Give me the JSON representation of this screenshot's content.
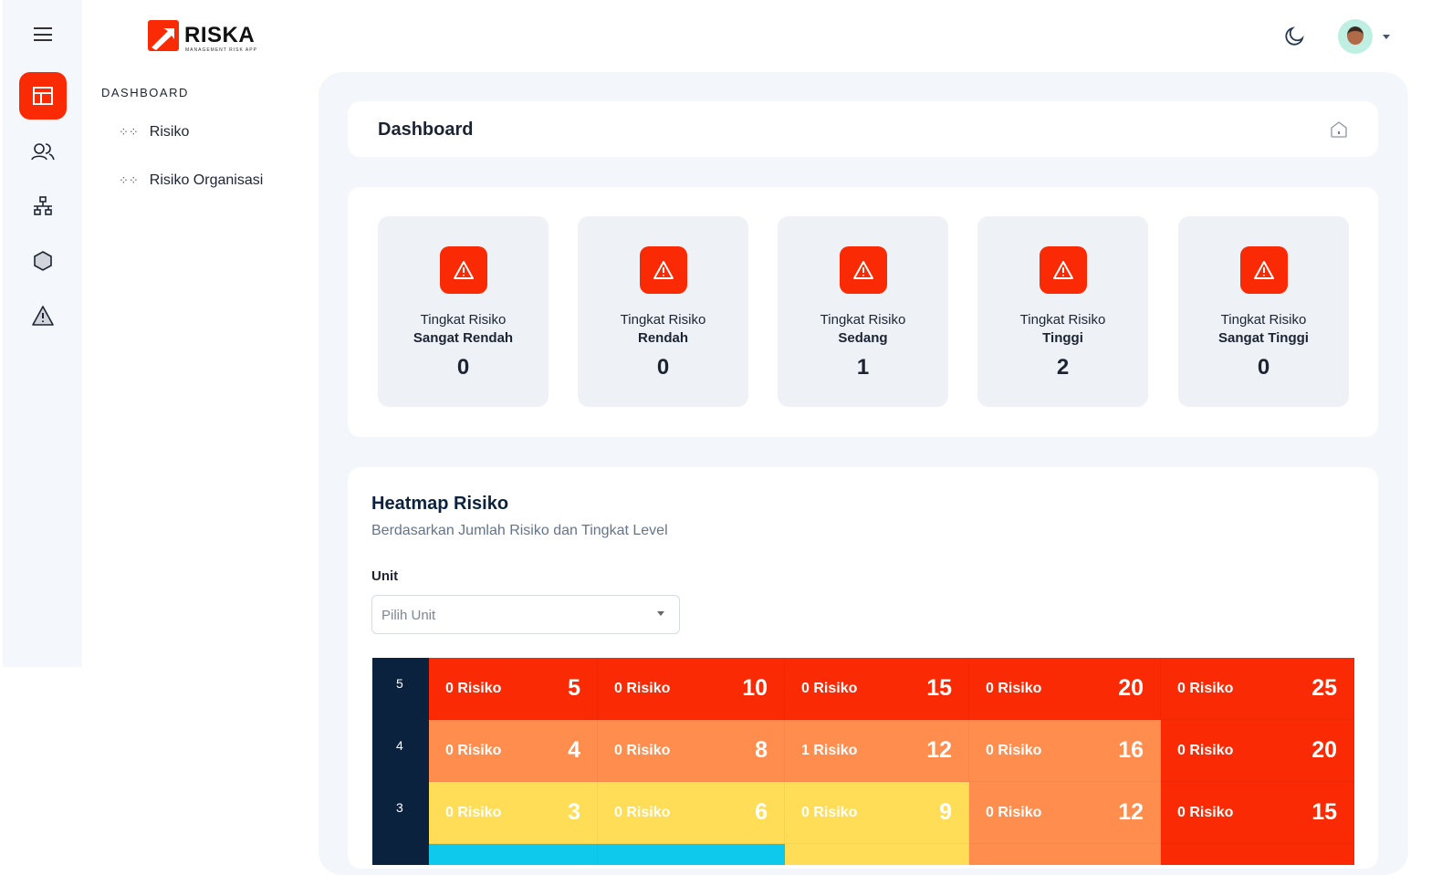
{
  "brand": {
    "name": "RISKA",
    "tagline": "MANAGEMENT RISK APP"
  },
  "rail": [
    {
      "icon": "layout-icon",
      "active": true
    },
    {
      "icon": "users-icon"
    },
    {
      "icon": "network-icon"
    },
    {
      "icon": "hexagon-icon"
    },
    {
      "icon": "alert-triangle-icon"
    }
  ],
  "sidebar": {
    "section": "DASHBOARD",
    "items": [
      {
        "label": "Risiko"
      },
      {
        "label": "Risiko Organisasi"
      }
    ]
  },
  "header": {
    "title": "Dashboard"
  },
  "stats": [
    {
      "l1": "Tingkat Risiko",
      "l2": "Sangat Rendah",
      "value": "0"
    },
    {
      "l1": "Tingkat Risiko",
      "l2": "Rendah",
      "value": "0"
    },
    {
      "l1": "Tingkat Risiko",
      "l2": "Sedang",
      "value": "1"
    },
    {
      "l1": "Tingkat Risiko",
      "l2": "Tinggi",
      "value": "2"
    },
    {
      "l1": "Tingkat Risiko",
      "l2": "Sangat Tinggi",
      "value": "0"
    }
  ],
  "heatmap": {
    "title": "Heatmap Risiko",
    "subtitle": "Berdasarkan Jumlah Risiko dan Tingkat Level",
    "unit_label": "Unit",
    "unit_placeholder": "Pilih Unit",
    "colors": {
      "red": "#f92a04",
      "orange": "#ff8d4e",
      "yellow": "#ffdd57",
      "cyan": "#0fc9ec",
      "label": "#0b223e"
    },
    "rows": [
      {
        "label": "5",
        "cells": [
          {
            "count": "0 Risiko",
            "score": "5",
            "color": "red"
          },
          {
            "count": "0 Risiko",
            "score": "10",
            "color": "red"
          },
          {
            "count": "0 Risiko",
            "score": "15",
            "color": "red"
          },
          {
            "count": "0 Risiko",
            "score": "20",
            "color": "red"
          },
          {
            "count": "0 Risiko",
            "score": "25",
            "color": "red"
          }
        ]
      },
      {
        "label": "4",
        "cells": [
          {
            "count": "0 Risiko",
            "score": "4",
            "color": "orange"
          },
          {
            "count": "0 Risiko",
            "score": "8",
            "color": "orange"
          },
          {
            "count": "1 Risiko",
            "score": "12",
            "color": "orange"
          },
          {
            "count": "0 Risiko",
            "score": "16",
            "color": "orange"
          },
          {
            "count": "0 Risiko",
            "score": "20",
            "color": "red"
          }
        ]
      },
      {
        "label": "3",
        "cells": [
          {
            "count": "0 Risiko",
            "score": "3",
            "color": "yellow"
          },
          {
            "count": "0 Risiko",
            "score": "6",
            "color": "yellow"
          },
          {
            "count": "0 Risiko",
            "score": "9",
            "color": "yellow"
          },
          {
            "count": "0 Risiko",
            "score": "12",
            "color": "orange"
          },
          {
            "count": "0 Risiko",
            "score": "15",
            "color": "red"
          }
        ]
      },
      {
        "label": "",
        "cells": [
          {
            "count": "",
            "score": "",
            "color": "cyan"
          },
          {
            "count": "",
            "score": "",
            "color": "cyan"
          },
          {
            "count": "",
            "score": "",
            "color": "yellow"
          },
          {
            "count": "",
            "score": "",
            "color": "orange"
          },
          {
            "count": "",
            "score": "",
            "color": "red"
          }
        ]
      }
    ]
  }
}
